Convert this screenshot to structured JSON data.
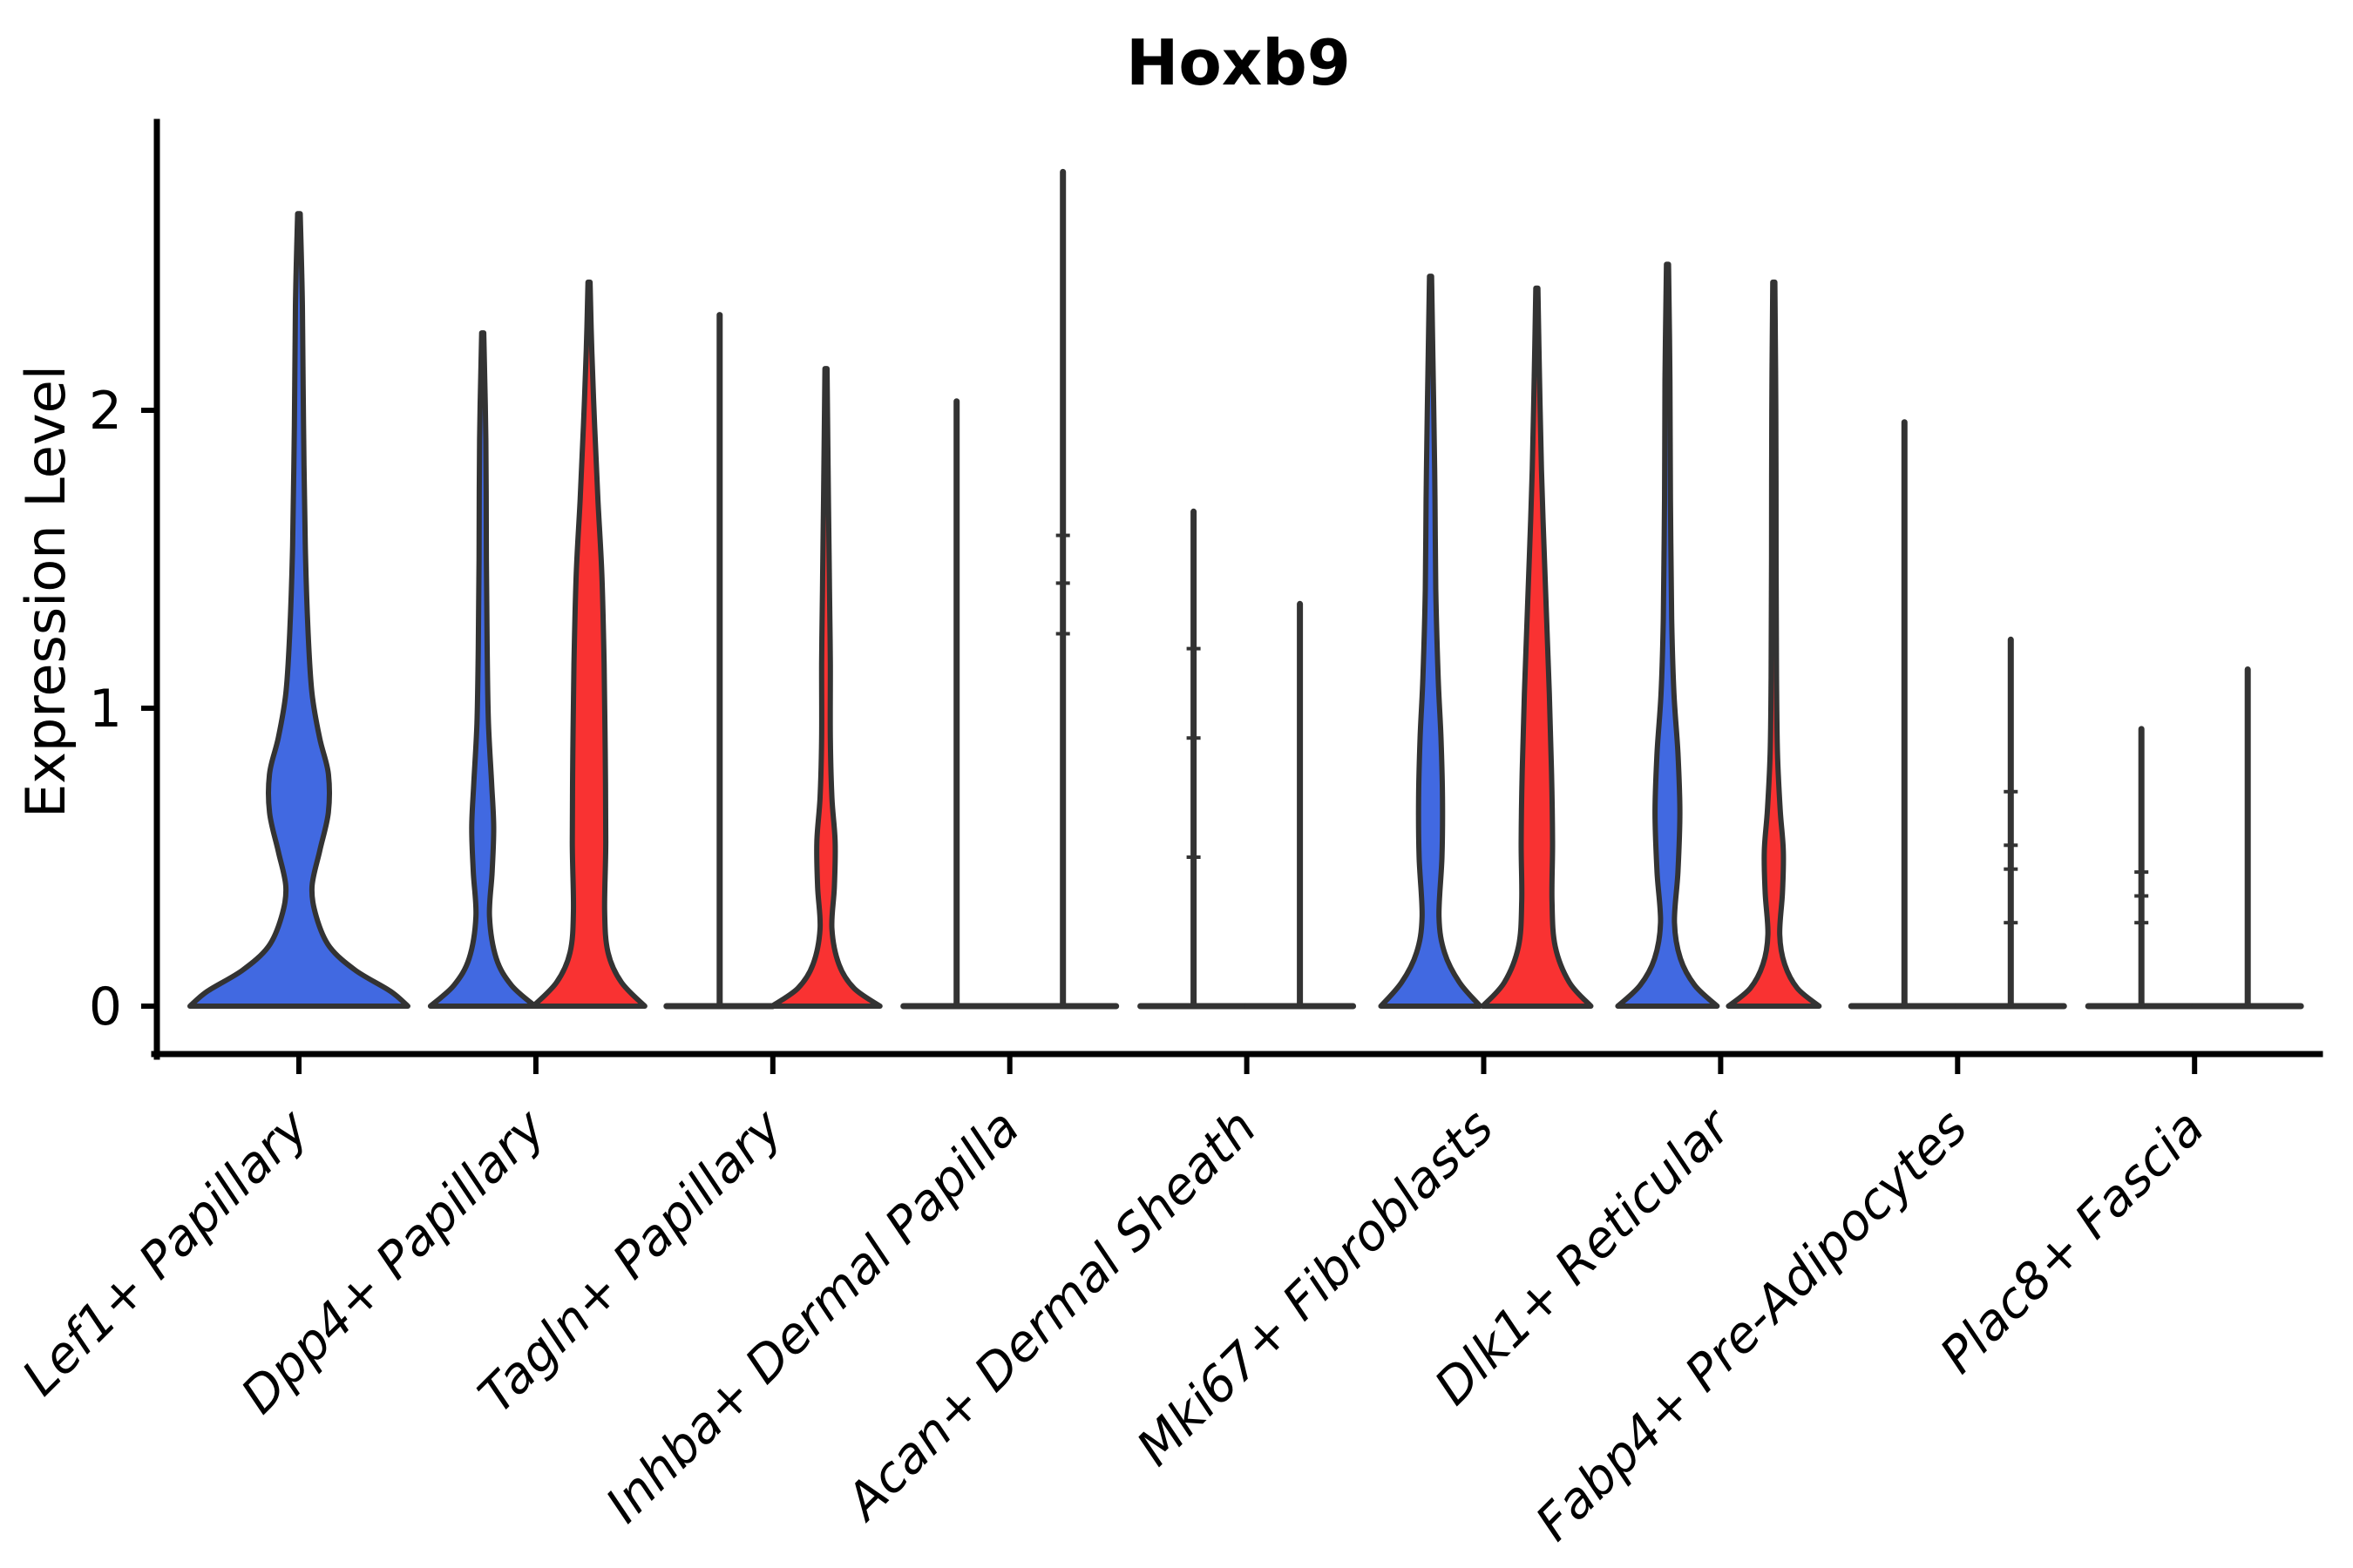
{
  "title": "Hoxb9",
  "y_axis": {
    "label": "Expression Level",
    "tick_labels": [
      "0",
      "1",
      "2"
    ]
  },
  "chart_data": {
    "type": "violin",
    "title": "Hoxb9",
    "xlabel": "",
    "ylabel": "Expression Level",
    "yticks": [
      0,
      1,
      2
    ],
    "ylim": [
      -0.16,
      2.97
    ],
    "grid": false,
    "legend": "none",
    "colors": {
      "blue": "#4169E1",
      "red": "#F93232",
      "outline": "#333333",
      "axis": "#000000"
    },
    "categories": [
      {
        "label": "Lef1+ Papillary",
        "violins": [
          {
            "group": "blue",
            "position": "center",
            "style": "filled",
            "max": 2.66,
            "half_width": 125,
            "profile": [
              [
                0,
                1
              ],
              [
                0.05,
                0.84
              ],
              [
                0.12,
                0.52
              ],
              [
                0.2,
                0.28
              ],
              [
                0.3,
                0.16
              ],
              [
                0.4,
                0.12
              ],
              [
                0.52,
                0.19
              ],
              [
                0.65,
                0.27
              ],
              [
                0.78,
                0.27
              ],
              [
                0.9,
                0.19
              ],
              [
                1.05,
                0.12
              ],
              [
                1.25,
                0.085
              ],
              [
                1.55,
                0.058
              ],
              [
                1.95,
                0.042
              ],
              [
                2.35,
                0.032
              ],
              [
                2.66,
                0.012
              ]
            ]
          }
        ]
      },
      {
        "label": "Dpp4+ Papillary",
        "violins": [
          {
            "group": "blue",
            "position": "left",
            "style": "filled",
            "max": 2.26,
            "half_width": 60,
            "profile": [
              [
                0,
                1
              ],
              [
                0.07,
                0.55
              ],
              [
                0.16,
                0.26
              ],
              [
                0.3,
                0.13
              ],
              [
                0.45,
                0.18
              ],
              [
                0.6,
                0.21
              ],
              [
                0.75,
                0.17
              ],
              [
                0.95,
                0.11
              ],
              [
                1.2,
                0.085
              ],
              [
                1.5,
                0.07
              ],
              [
                1.9,
                0.06
              ],
              [
                2.26,
                0.018
              ]
            ]
          },
          {
            "group": "red",
            "position": "right",
            "style": "filled",
            "max": 2.43,
            "half_width": 64,
            "profile": [
              [
                0,
                1
              ],
              [
                0.08,
                0.58
              ],
              [
                0.18,
                0.34
              ],
              [
                0.32,
                0.28
              ],
              [
                0.55,
                0.3
              ],
              [
                0.85,
                0.29
              ],
              [
                1.15,
                0.27
              ],
              [
                1.45,
                0.23
              ],
              [
                1.7,
                0.16
              ],
              [
                1.95,
                0.1
              ],
              [
                2.2,
                0.05
              ],
              [
                2.43,
                0.018
              ]
            ]
          }
        ]
      },
      {
        "label": "Tagln+ Papillary",
        "violins": [
          {
            "group": "blue",
            "position": "left",
            "style": "line",
            "max": 2.32
          },
          {
            "group": "red",
            "position": "right",
            "style": "filled",
            "max": 2.14,
            "half_width": 62,
            "profile": [
              [
                0,
                1
              ],
              [
                0.06,
                0.52
              ],
              [
                0.14,
                0.24
              ],
              [
                0.26,
                0.11
              ],
              [
                0.4,
                0.155
              ],
              [
                0.55,
                0.17
              ],
              [
                0.7,
                0.11
              ],
              [
                0.9,
                0.08
              ],
              [
                1.15,
                0.08
              ],
              [
                1.4,
                0.065
              ],
              [
                1.7,
                0.045
              ],
              [
                2.14,
                0.015
              ]
            ]
          }
        ]
      },
      {
        "label": "Inhba+ Dermal Papilla",
        "violins": [
          {
            "group": "blue",
            "position": "left",
            "style": "line",
            "max": 2.03
          },
          {
            "group": "red",
            "position": "right",
            "style": "line",
            "max": 2.8,
            "marks": [
              1.25,
              1.42,
              1.58
            ]
          }
        ]
      },
      {
        "label": "Acan+ Dermal Sheath",
        "violins": [
          {
            "group": "blue",
            "position": "left",
            "style": "line",
            "max": 1.66,
            "marks": [
              0.5,
              0.9,
              1.2
            ]
          },
          {
            "group": "red",
            "position": "right",
            "style": "line",
            "max": 1.35
          }
        ]
      },
      {
        "label": "Mki67+ Fibroblasts",
        "violins": [
          {
            "group": "blue",
            "position": "left",
            "style": "filled",
            "max": 2.45,
            "half_width": 57,
            "profile": [
              [
                0,
                1
              ],
              [
                0.08,
                0.58
              ],
              [
                0.18,
                0.28
              ],
              [
                0.3,
                0.17
              ],
              [
                0.5,
                0.23
              ],
              [
                0.7,
                0.24
              ],
              [
                0.9,
                0.21
              ],
              [
                1.1,
                0.155
              ],
              [
                1.4,
                0.105
              ],
              [
                1.7,
                0.09
              ],
              [
                2.0,
                0.065
              ],
              [
                2.45,
                0.018
              ]
            ]
          },
          {
            "group": "red",
            "position": "right",
            "style": "filled",
            "max": 2.41,
            "half_width": 62,
            "profile": [
              [
                0,
                1
              ],
              [
                0.08,
                0.6
              ],
              [
                0.2,
                0.34
              ],
              [
                0.35,
                0.28
              ],
              [
                0.55,
                0.29
              ],
              [
                0.8,
                0.27
              ],
              [
                1.05,
                0.23
              ],
              [
                1.3,
                0.18
              ],
              [
                1.55,
                0.13
              ],
              [
                1.8,
                0.085
              ],
              [
                2.1,
                0.05
              ],
              [
                2.41,
                0.018
              ]
            ]
          }
        ]
      },
      {
        "label": "Dlk1+ Reticular",
        "violins": [
          {
            "group": "blue",
            "position": "left",
            "style": "filled",
            "max": 2.49,
            "half_width": 57,
            "profile": [
              [
                0,
                1
              ],
              [
                0.07,
                0.55
              ],
              [
                0.16,
                0.26
              ],
              [
                0.28,
                0.14
              ],
              [
                0.45,
                0.21
              ],
              [
                0.65,
                0.25
              ],
              [
                0.85,
                0.21
              ],
              [
                1.05,
                0.13
              ],
              [
                1.3,
                0.085
              ],
              [
                1.7,
                0.06
              ],
              [
                2.1,
                0.05
              ],
              [
                2.49,
                0.018
              ]
            ]
          },
          {
            "group": "red",
            "position": "right",
            "style": "filled",
            "max": 2.43,
            "half_width": 52,
            "profile": [
              [
                0,
                1
              ],
              [
                0.06,
                0.52
              ],
              [
                0.14,
                0.24
              ],
              [
                0.24,
                0.13
              ],
              [
                0.38,
                0.19
              ],
              [
                0.52,
                0.21
              ],
              [
                0.66,
                0.14
              ],
              [
                0.85,
                0.08
              ],
              [
                1.1,
                0.06
              ],
              [
                1.5,
                0.05
              ],
              [
                2.0,
                0.045
              ],
              [
                2.43,
                0.018
              ]
            ]
          }
        ]
      },
      {
        "label": "Fabp4+ Pre-Adipocytes",
        "violins": [
          {
            "group": "blue",
            "position": "left",
            "style": "line",
            "max": 1.96
          },
          {
            "group": "red",
            "position": "right",
            "style": "line",
            "max": 1.23,
            "marks": [
              0.28,
              0.46,
              0.54,
              0.72
            ]
          }
        ]
      },
      {
        "label": "Plac8+ Fascia",
        "violins": [
          {
            "group": "blue",
            "position": "left",
            "style": "line",
            "max": 0.93,
            "marks": [
              0.28,
              0.37,
              0.45
            ]
          },
          {
            "group": "red",
            "position": "right",
            "style": "line",
            "max": 1.13
          }
        ]
      }
    ]
  }
}
